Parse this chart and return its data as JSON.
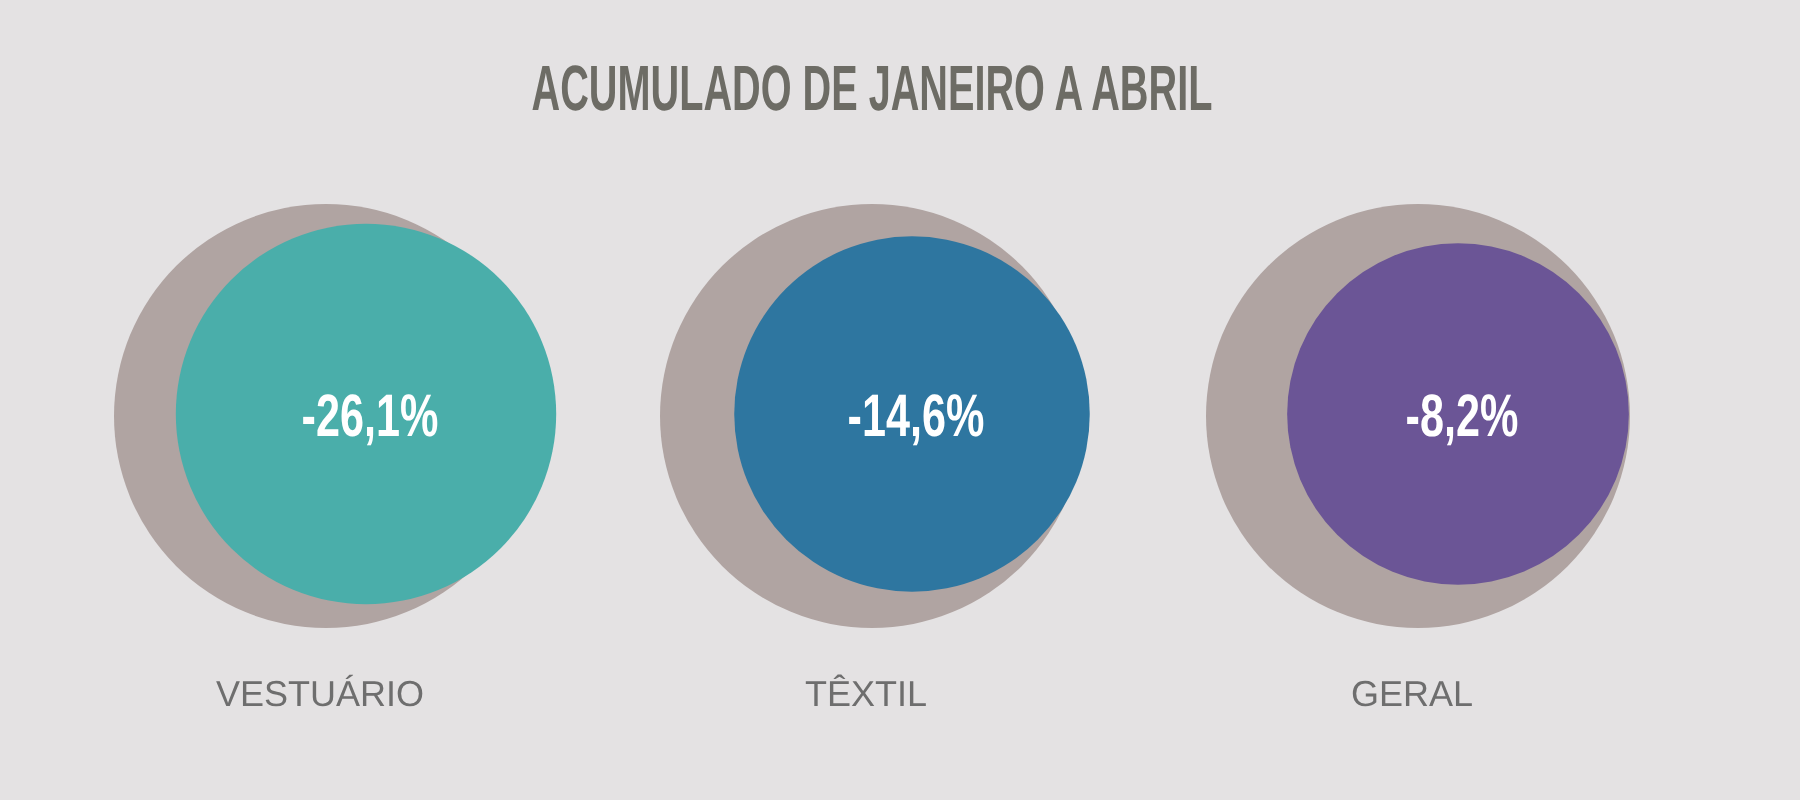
{
  "chart_data": {
    "type": "other",
    "title": "ACUMULADO DE JANEIRO A ABRIL",
    "categories": [
      "VESTUÁRIO",
      "TÊXTIL",
      "GERAL"
    ],
    "values": [
      -26.1,
      -14.6,
      -8.2
    ],
    "value_labels": [
      "-26,1%",
      "-14,6%",
      "-8,2%"
    ],
    "colors": [
      "#4aaeaa",
      "#2e76a0",
      "#6b5596"
    ],
    "data_labels": true
  }
}
